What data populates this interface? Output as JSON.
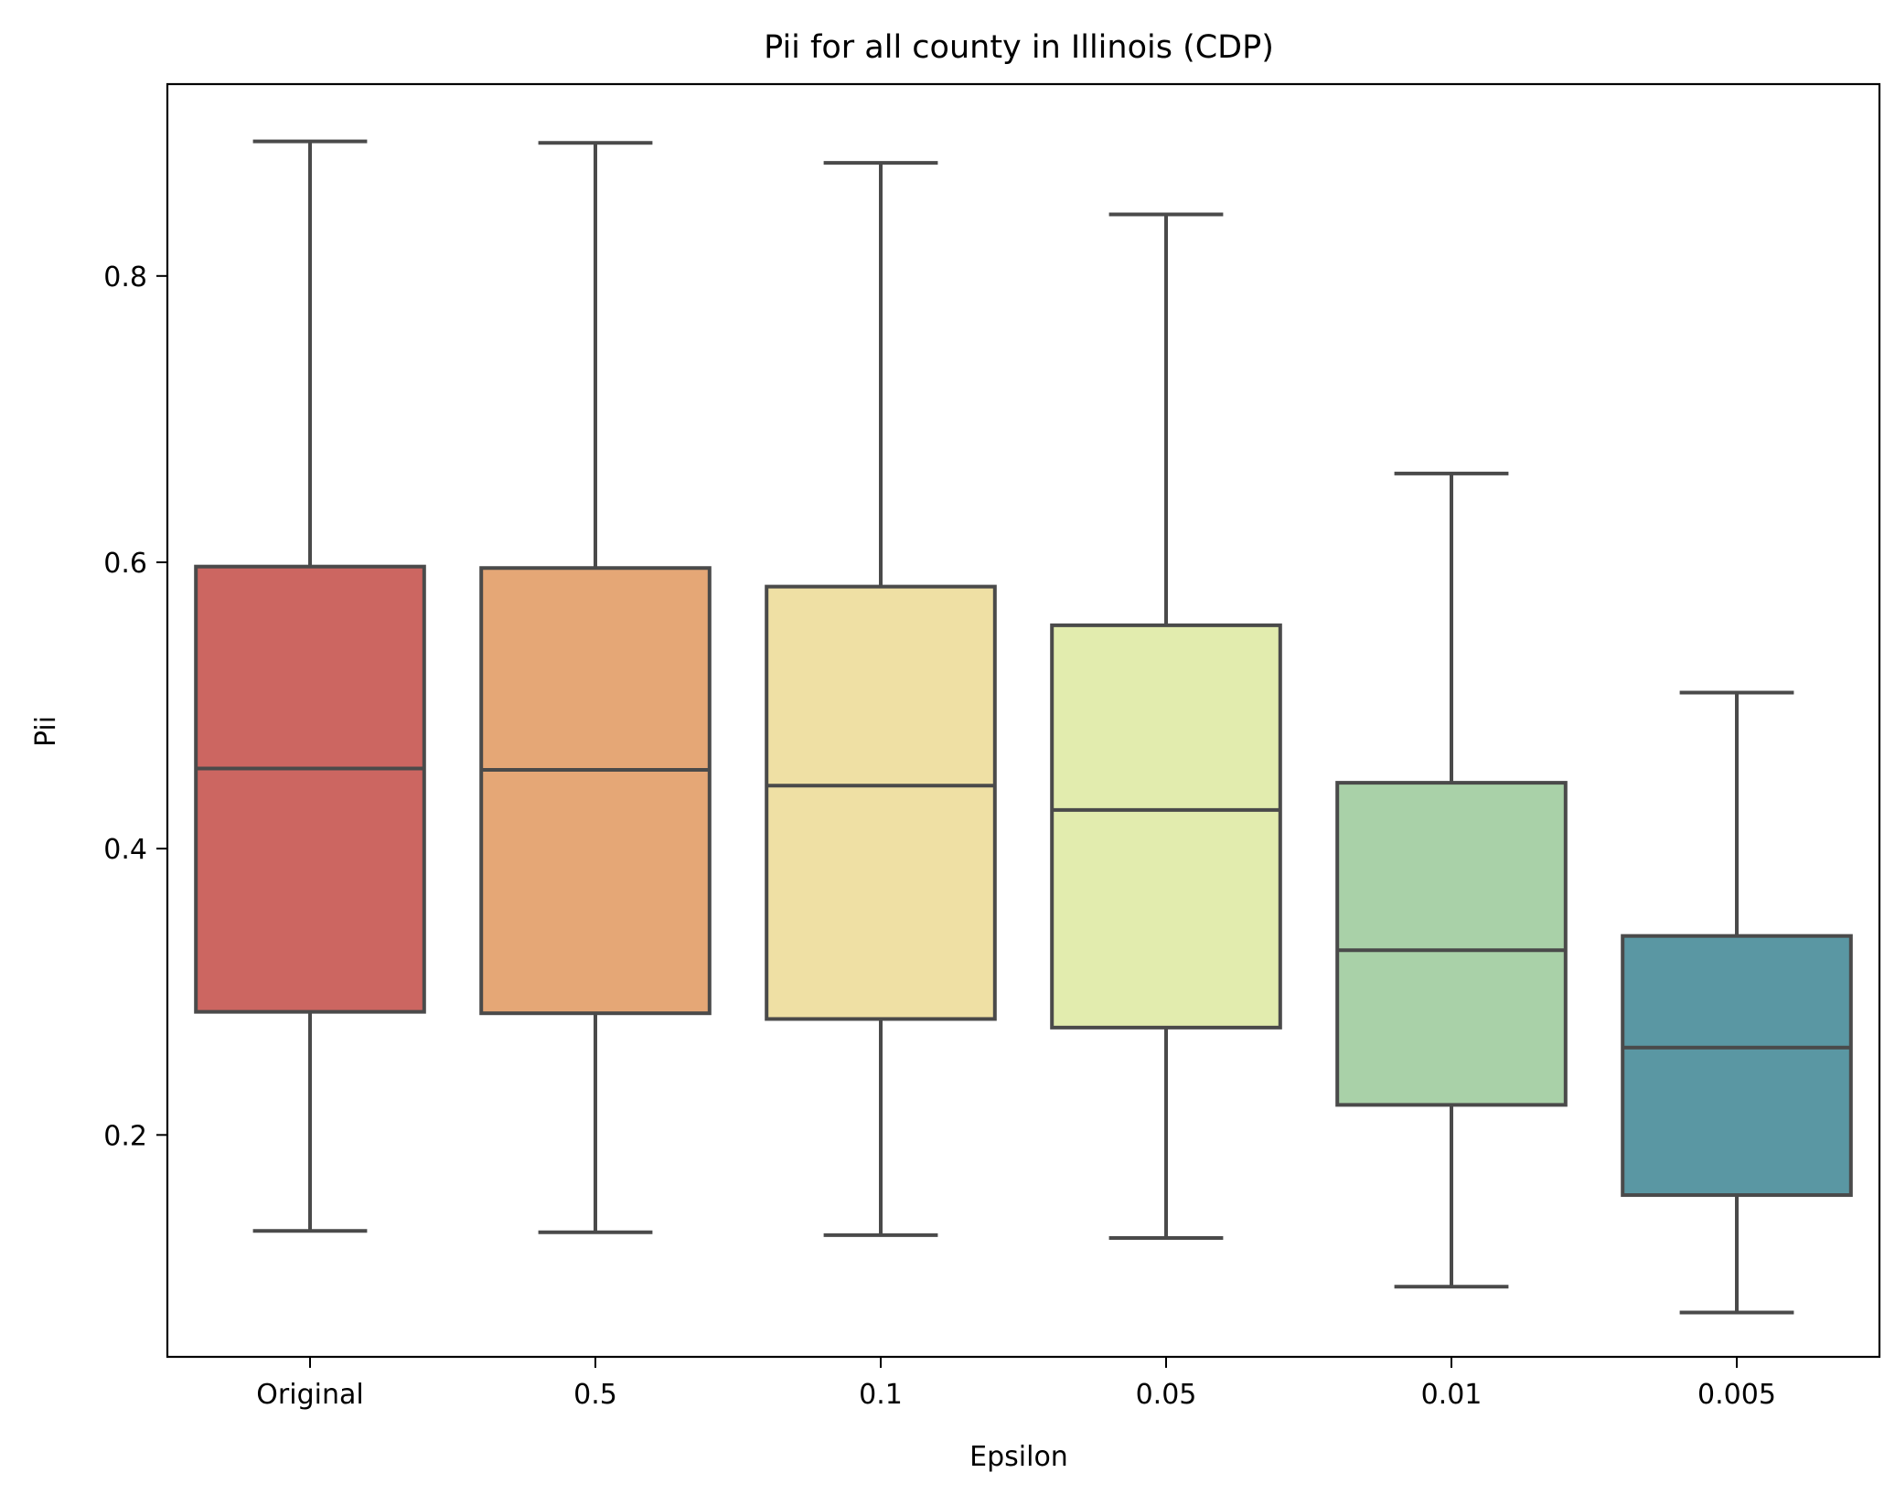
{
  "chart_data": {
    "type": "box",
    "title": "Pii for all county in Illinois (CDP)",
    "xlabel": "Epsilon",
    "ylabel": "Pii",
    "categories": [
      "Original",
      "0.5",
      "0.1",
      "0.05",
      "0.01",
      "0.005"
    ],
    "ylim": [
      0.045,
      0.934
    ],
    "yticks": [
      0.2,
      0.4,
      0.6,
      0.8
    ],
    "ytick_labels": [
      "0.2",
      "0.4",
      "0.6",
      "0.8"
    ],
    "grid": false,
    "legend": "none",
    "boxes": [
      {
        "category": "Original",
        "whisker_low": 0.133,
        "q1": 0.286,
        "median": 0.456,
        "q3": 0.597,
        "whisker_high": 0.894,
        "color": "#cc6661"
      },
      {
        "category": "0.5",
        "whisker_low": 0.132,
        "q1": 0.285,
        "median": 0.455,
        "q3": 0.596,
        "whisker_high": 0.893,
        "color": "#e5a776"
      },
      {
        "category": "0.1",
        "whisker_low": 0.13,
        "q1": 0.281,
        "median": 0.444,
        "q3": 0.583,
        "whisker_high": 0.879,
        "color": "#efe0a4"
      },
      {
        "category": "0.05",
        "whisker_low": 0.128,
        "q1": 0.275,
        "median": 0.427,
        "q3": 0.556,
        "whisker_high": 0.843,
        "color": "#e2ecae"
      },
      {
        "category": "0.01",
        "whisker_low": 0.094,
        "q1": 0.221,
        "median": 0.329,
        "q3": 0.446,
        "whisker_high": 0.662,
        "color": "#a9d1a8"
      },
      {
        "category": "0.005",
        "whisker_low": 0.076,
        "q1": 0.158,
        "median": 0.261,
        "q3": 0.339,
        "whisker_high": 0.509,
        "color": "#5a97a3"
      }
    ],
    "colors": {
      "line": "#4a4a4a",
      "axis": "#000000",
      "background": "#ffffff"
    }
  }
}
